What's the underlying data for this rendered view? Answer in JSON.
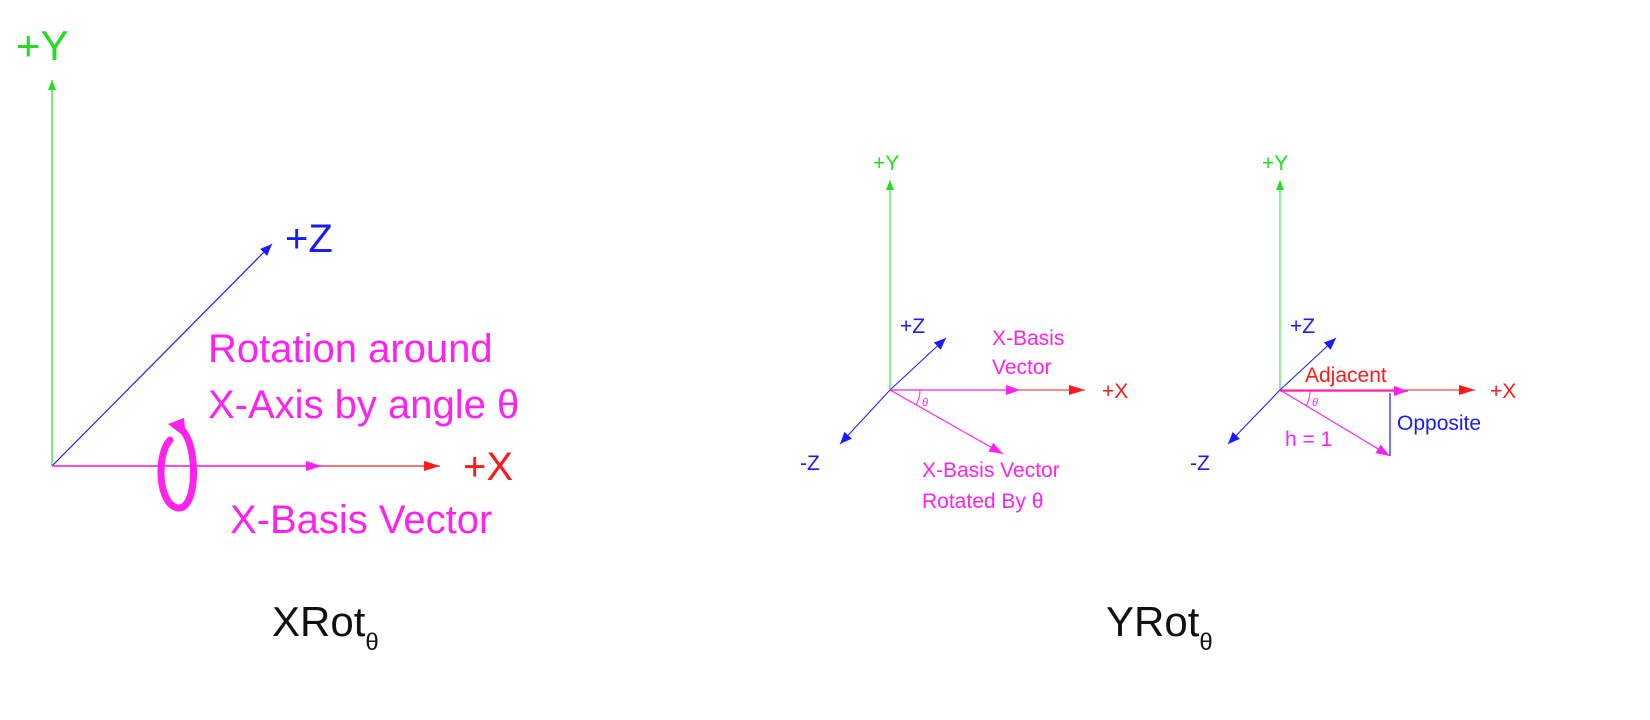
{
  "colors": {
    "y_axis": "#22dd22",
    "z_axis": "#1a1aff",
    "x_axis": "#ff1a1a",
    "basis": "#ff22ee",
    "caption": "#111111"
  },
  "panel_xrot": {
    "y_label": "+Y",
    "z_label": "+Z",
    "x_label": "+X",
    "rotation_line1": "Rotation around",
    "rotation_line2": "X-Axis by angle θ",
    "basis_label": "X-Basis Vector",
    "caption_main": "XRot",
    "caption_sub": "θ"
  },
  "panel_yrot_a": {
    "y_label": "+Y",
    "z_pos_label": "+Z",
    "z_neg_label": "-Z",
    "x_label": "+X",
    "basis_line1": "X-Basis",
    "basis_line2": "Vector",
    "rotated_line1": "X-Basis Vector",
    "rotated_line2": "Rotated By θ",
    "angle_mark": "θ"
  },
  "panel_yrot_b": {
    "y_label": "+Y",
    "z_pos_label": "+Z",
    "z_neg_label": "-Z",
    "x_label": "+X",
    "adjacent_label": "Adjacent",
    "opposite_label": "Opposite",
    "hyp_label": "h = 1",
    "angle_mark": "θ"
  },
  "caption_yrot": {
    "main": "YRot",
    "sub": "θ"
  }
}
